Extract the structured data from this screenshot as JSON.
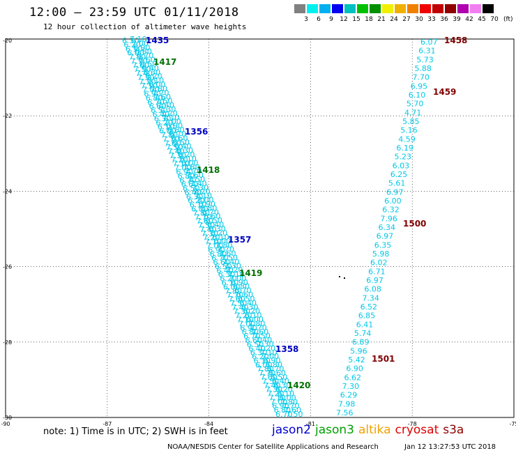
{
  "title": "12:00 — 23:59 UTC 01/11/2018",
  "subtitle": "12 hour collection of altimeter wave heights",
  "legend": {
    "colors": [
      "#808080",
      "#00f0f0",
      "#00b0f0",
      "#0000f0",
      "#00c0c0",
      "#00c000",
      "#009000",
      "#f0f000",
      "#f0b000",
      "#f08000",
      "#f00000",
      "#c00000",
      "#900000",
      "#b000b0",
      "#f080f0",
      "#000000"
    ],
    "labels": [
      "3",
      "6",
      "9",
      "12",
      "15",
      "18",
      "21",
      "24",
      "27",
      "30",
      "33",
      "36",
      "39",
      "42",
      "45",
      "70"
    ],
    "unit": "(ft)"
  },
  "map": {
    "xticks": [
      "-90",
      "-87",
      "-84",
      "-81",
      "-78",
      "-75"
    ],
    "yticks": [
      "-20",
      "-22",
      "-24",
      "-26",
      "-28",
      "-30"
    ],
    "times": [
      {
        "text": "1435",
        "color": "#0000c0"
      },
      {
        "text": "1417",
        "color": "#007000"
      },
      {
        "text": "1356",
        "color": "#0000c0"
      },
      {
        "text": "1418",
        "color": "#007000"
      },
      {
        "text": "1357",
        "color": "#0000c0"
      },
      {
        "text": "1419",
        "color": "#007000"
      },
      {
        "text": "1358",
        "color": "#0000c0"
      },
      {
        "text": "1420",
        "color": "#007000"
      },
      {
        "text": "1458",
        "color": "#800000"
      },
      {
        "text": "1459",
        "color": "#800000"
      },
      {
        "text": "1500",
        "color": "#800000"
      },
      {
        "text": "1501",
        "color": "#800000"
      }
    ],
    "east_track": [
      "6.07",
      "6.31",
      "5.73",
      "5.88",
      "7.70",
      "6.95",
      "6.10",
      "5.70",
      "4.71",
      "5.85",
      "5.16",
      "4.59",
      "6.19",
      "5.23",
      "6.03",
      "6.25",
      "5.61",
      "6.97",
      "6.00",
      "6.32",
      "7.96",
      "6.34",
      "6.97",
      "6.35",
      "5.98",
      "6.02",
      "6.71",
      "6.97",
      "6.08",
      "7.34",
      "6.52",
      "6.85",
      "6.41",
      "5.74",
      "6.89",
      "5.96",
      "5.42",
      "6.90",
      "6.62",
      "7.30",
      "6.29",
      "7.98",
      "7.56"
    ],
    "west_tracks_color": "#00c8e8"
  },
  "note": "note: 1) Time is in UTC; 2) SWH is in feet",
  "satellites": [
    {
      "name": "jason2",
      "color": "#0000d0"
    },
    {
      "name": "jason3",
      "color": "#00a000"
    },
    {
      "name": "altika",
      "color": "#f0a000"
    },
    {
      "name": "cryosat",
      "color": "#e00000"
    },
    {
      "name": "s3a",
      "color": "#900000"
    }
  ],
  "footer": {
    "credit": "NOAA/NESDIS Center for Satellite Applications and Research",
    "timestamp": "Jan 12 13:27:53 UTC 2018"
  }
}
